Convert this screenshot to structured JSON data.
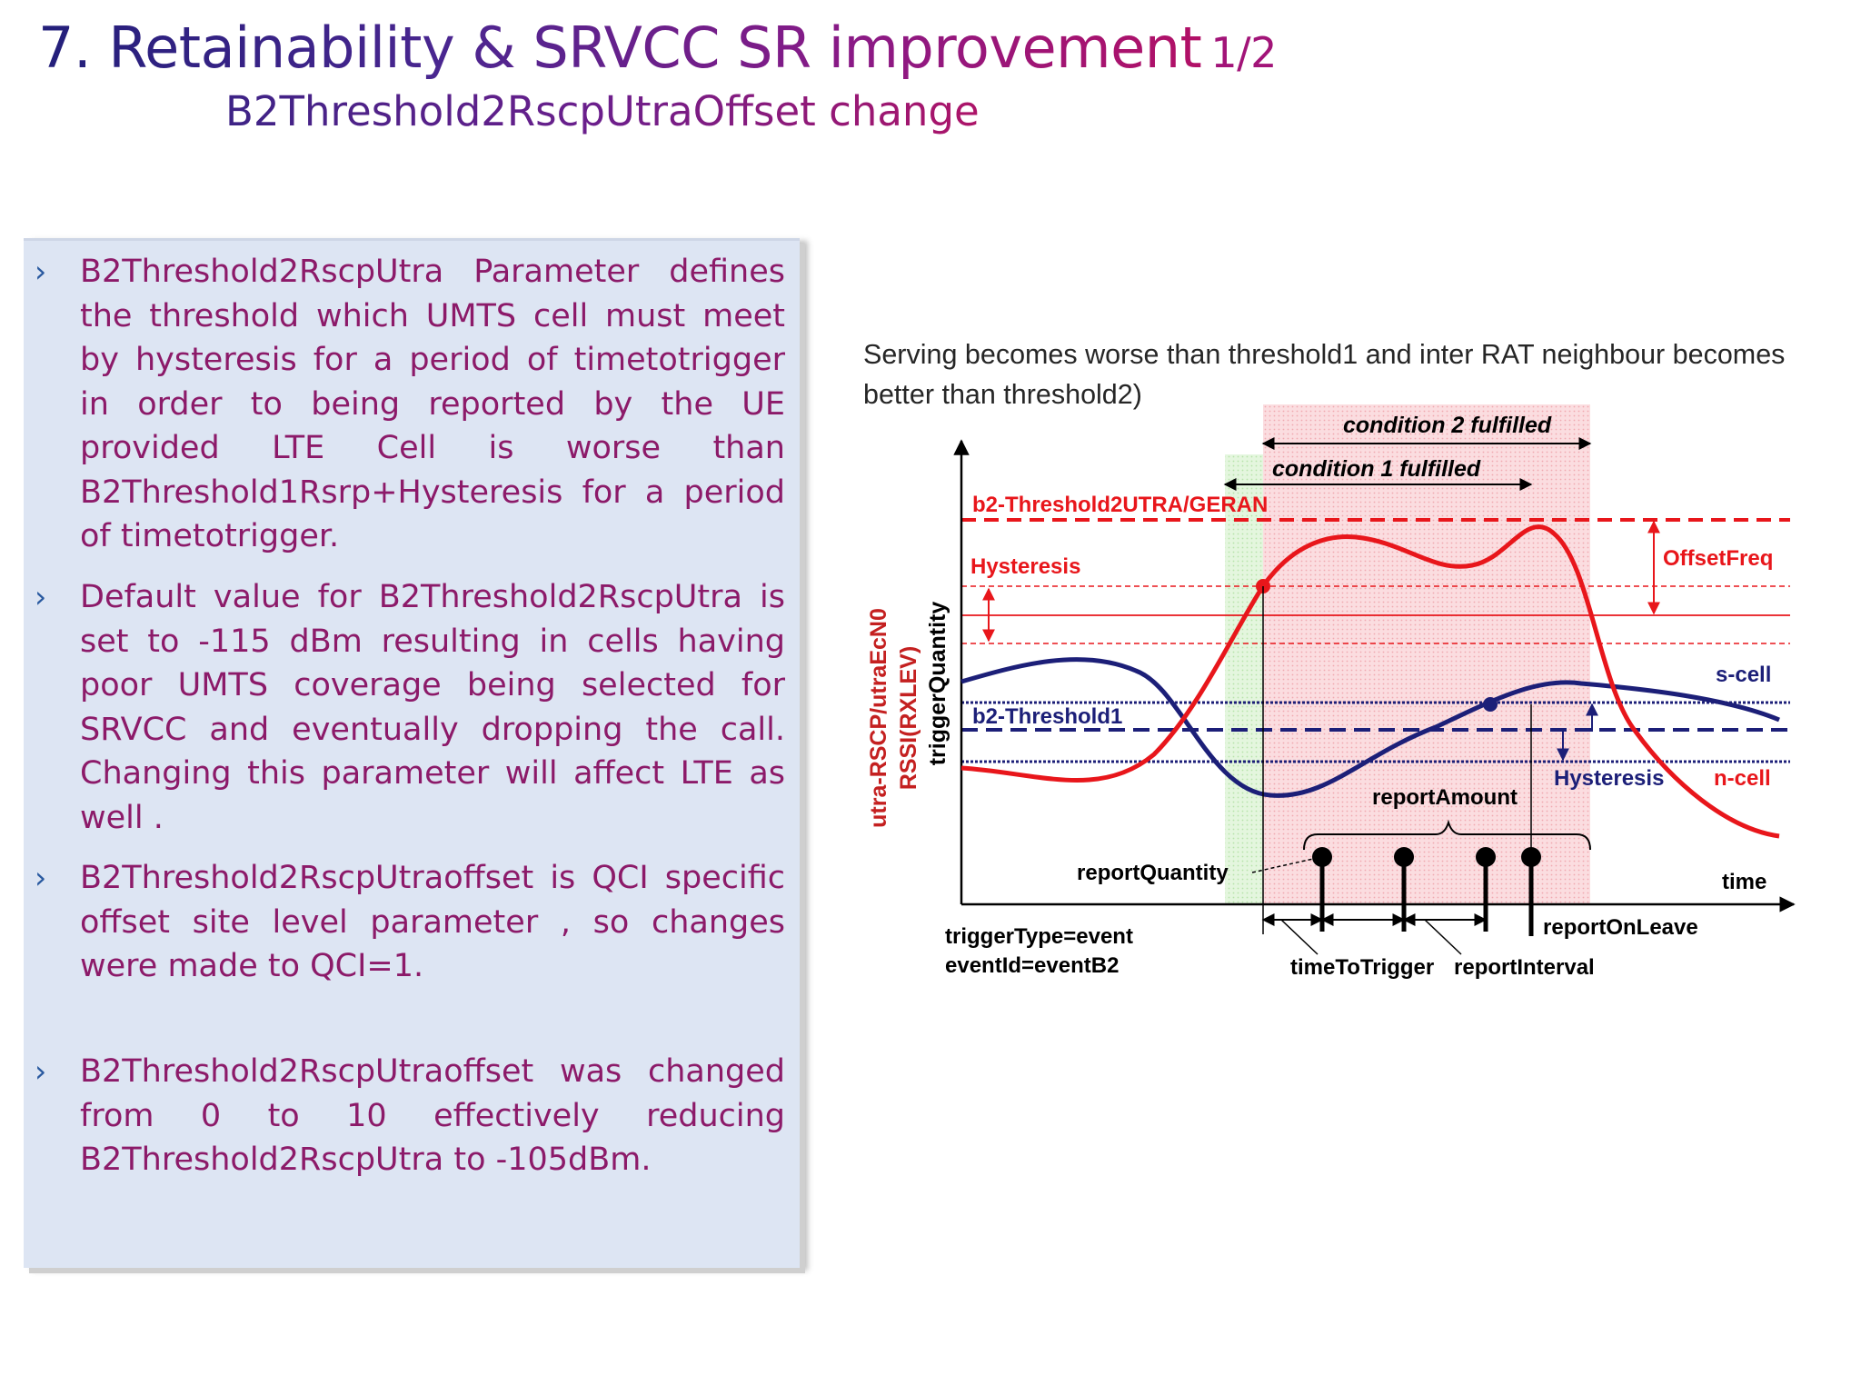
{
  "header": {
    "title": "7. Retainability & SRVCC SR improvement",
    "title_part": "1/2",
    "subtitle": "B2Threshold2RscpUtraOffset change"
  },
  "bullets": [
    "B2Threshold2RscpUtra Parameter defines  the threshold which UMTS cell must meet by hysteresis for a period of timetotrigger in order to being reported by the UE provided LTE Cell is worse than B2Threshold1Rsrp+Hysteresis for a period of timetotrigger.",
    "Default value for B2Threshold2RscpUtra is set to -115 dBm resulting in cells having poor UMTS coverage being selected for SRVCC and eventually dropping the call. Changing this parameter will affect LTE as well .",
    "B2Threshold2RscpUtraoffset is QCI specific offset site level parameter  , so changes were made to QCI=1.",
    "B2Threshold2RscpUtraoffset was changed from 0 to 10 effectively reducing B2Threshold2RscpUtra  to -105dBm."
  ],
  "bullet_icon": "chevron-right-icon",
  "figure": {
    "caption": "Serving becomes worse than threshold1 and inter RAT neighbour becomes better than threshold2)",
    "labels": {
      "condition2": "condition 2 fulfilled",
      "condition1": "condition 1 fulfilled",
      "b2_threshold2": "b2-Threshold2UTRA/GERAN",
      "hysteresis_top": "Hysteresis",
      "offset_freq": "OffsetFreq",
      "s_cell": "s-cell",
      "b2_threshold1": "b2-Threshold1",
      "hysteresis_bottom": "Hysteresis",
      "n_cell": "n-cell",
      "report_amount": "reportAmount",
      "report_quantity": "reportQuantity",
      "time": "time",
      "trigger_type": "triggerType=event",
      "event_id": "eventId=eventB2",
      "time_to_trigger": "timeToTrigger",
      "report_interval": "reportInterval",
      "report_on_leave": "reportOnLeave",
      "y_axis_1": "utra-RSCP/utraEcN0",
      "y_axis_2": "RSSI(RXLEV)",
      "y_axis_3": "triggerQuantity"
    },
    "colors": {
      "serving": "#1c1f78",
      "neighbour": "#e8161b",
      "condition1_zone": "#e4f6de",
      "condition2_zone": "#fbdde0",
      "y_axis_label": "#c42020"
    }
  }
}
